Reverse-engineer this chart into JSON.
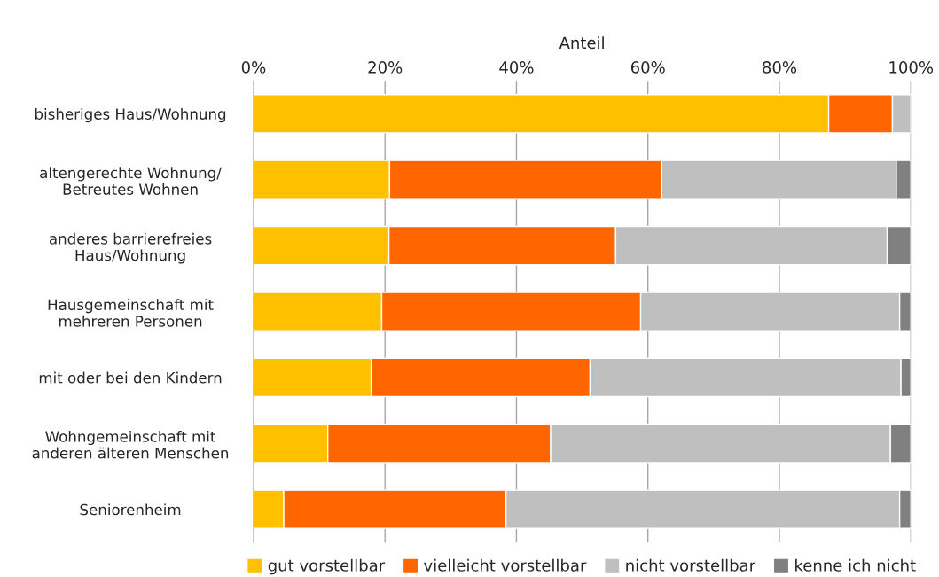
{
  "chart_data": {
    "type": "bar",
    "orientation": "horizontal",
    "stacked": true,
    "xlabel": "Anteil",
    "categories": [
      "bisheriges Haus/Wohnung",
      "altengerechte Wohnung/\nBetreutes Wohnen",
      "anderes barrierefreies\nHaus/Wohnung",
      "Hausgemeinschaft mit\nmehreren Personen",
      "mit oder bei den Kindern",
      "Wohngemeinschaft mit\nanderen älteren Menschen",
      "Seniorenheim"
    ],
    "series": [
      {
        "name": "gut vorstellbar",
        "color": "#ffc000",
        "values": [
          87.5,
          20.7,
          20.6,
          19.5,
          17.9,
          11.3,
          4.6
        ]
      },
      {
        "name": "vielleicht vorstellbar",
        "color": "#ff6600",
        "values": [
          9.7,
          41.4,
          34.5,
          39.4,
          33.3,
          33.9,
          33.8
        ]
      },
      {
        "name": "nicht vorstellbar",
        "color": "#bfbfbf",
        "values": [
          2.8,
          35.7,
          41.3,
          39.4,
          47.3,
          51.7,
          59.9
        ]
      },
      {
        "name": "kenne ich nicht",
        "color": "#808080",
        "values": [
          null,
          2.2,
          3.6,
          1.7,
          1.5,
          3.1,
          1.7
        ]
      }
    ],
    "xlim": [
      0,
      100
    ],
    "xticks": [
      {
        "value": 0,
        "label": "0%"
      },
      {
        "value": 20,
        "label": "20%"
      },
      {
        "value": 40,
        "label": "40%"
      },
      {
        "value": 60,
        "label": "60%"
      },
      {
        "value": 80,
        "label": "80%"
      },
      {
        "value": 100,
        "label": "100%"
      }
    ],
    "grid": "x",
    "legend": "bottom"
  }
}
